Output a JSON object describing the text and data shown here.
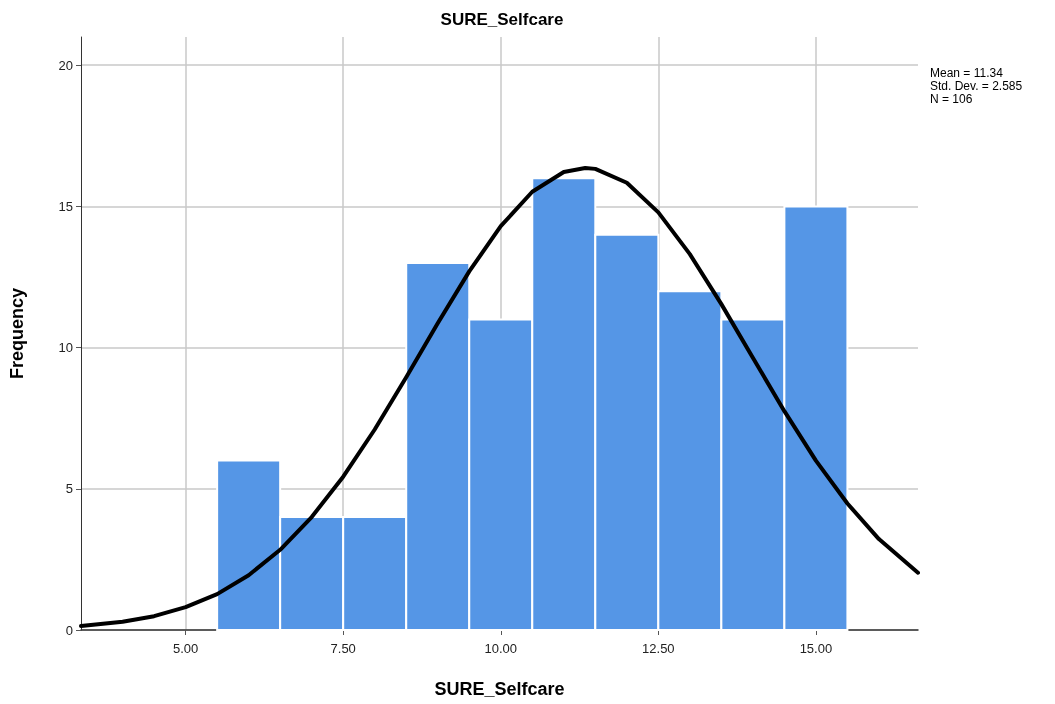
{
  "chart_data": {
    "type": "histogram",
    "title": "SURE_Selfcare",
    "xlabel": "SURE_Selfcare",
    "ylabel": "Frequency",
    "bins": [
      5.5,
      6.5,
      7.5,
      8.5,
      9.5,
      10.5,
      11.5,
      12.5,
      13.5,
      14.5,
      15.5
    ],
    "values": [
      6,
      4,
      4,
      13,
      11,
      16,
      14,
      12,
      11,
      15
    ],
    "color": "#5596e6",
    "series": [
      {
        "type": "line",
        "color": "#000000",
        "x": [
          3.34,
          4,
          4.5,
          5,
          5.5,
          6,
          6.5,
          7,
          7.5,
          8,
          8.5,
          9,
          9.5,
          10,
          10.5,
          11,
          11.34,
          11.5,
          12,
          12.5,
          13,
          13.5,
          14,
          14.5,
          15,
          15.5,
          16,
          16.62
        ],
        "values": [
          0.14,
          0.29,
          0.49,
          0.81,
          1.27,
          1.94,
          2.84,
          4.0,
          5.43,
          7.1,
          8.95,
          10.86,
          12.7,
          14.3,
          15.52,
          16.22,
          16.36,
          16.33,
          15.84,
          14.79,
          13.31,
          11.54,
          9.64,
          7.75,
          6.0,
          4.48,
          3.22,
          2.03
        ]
      }
    ],
    "xlim": [
      3.34,
      16.62
    ],
    "xticks": [
      {
        "value": 5,
        "label": "5.00"
      },
      {
        "value": 7.5,
        "label": "7.50"
      },
      {
        "value": 10,
        "label": "10.00"
      },
      {
        "value": 12.5,
        "label": "12.50"
      },
      {
        "value": 15,
        "label": "15.00"
      }
    ],
    "ylim": [
      0,
      21
    ],
    "yticks": [
      0,
      5,
      10,
      15,
      20
    ],
    "grid": true,
    "annotations": [
      "Mean = 11.34",
      "Std. Dev. = 2.585",
      "N = 106"
    ]
  }
}
